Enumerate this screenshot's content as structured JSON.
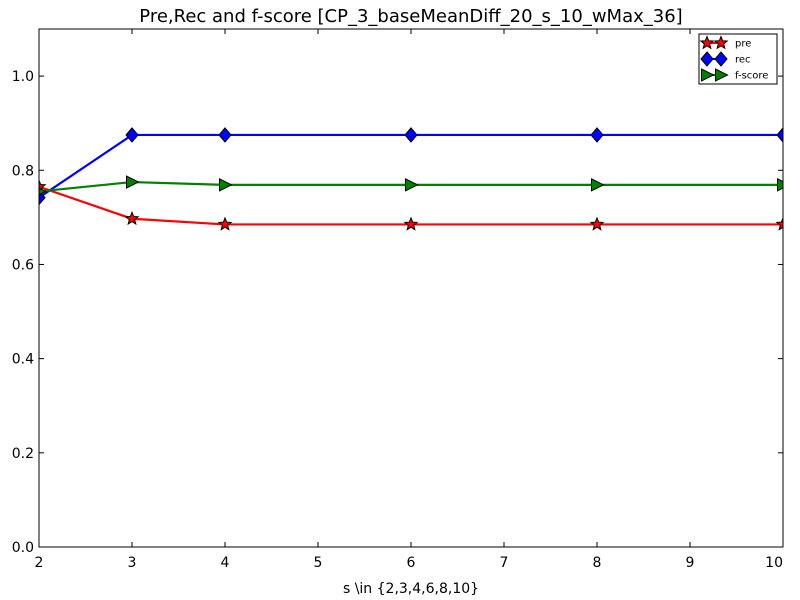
{
  "chart_data": {
    "type": "line",
    "title": "Pre,Rec and f-score [CP_3_baseMeanDiff_20_s_10_wMax_36]",
    "xlabel": "s \\in {2,3,4,6,8,10}",
    "ylabel": "",
    "xlim": [
      2,
      10
    ],
    "ylim": [
      0,
      1.1
    ],
    "x_ticks": [
      "2",
      "3",
      "4",
      "5",
      "6",
      "7",
      "8",
      "9",
      "10"
    ],
    "y_ticks": [
      "0.0",
      "0.2",
      "0.4",
      "0.6",
      "0.8",
      "1.0"
    ],
    "x": [
      2,
      3,
      4,
      6,
      8,
      10
    ],
    "grid": false,
    "legend_position": "top-right",
    "series": [
      {
        "name": "pre",
        "values": [
          0.765,
          0.697,
          0.685,
          0.685,
          0.685,
          0.685
        ],
        "color": "#ff0000",
        "marker": "star"
      },
      {
        "name": "rec",
        "values": [
          0.742,
          0.875,
          0.875,
          0.875,
          0.875,
          0.875
        ],
        "color": "#0000ff",
        "marker": "diamond"
      },
      {
        "name": "f-score",
        "values": [
          0.755,
          0.775,
          0.769,
          0.769,
          0.769,
          0.769
        ],
        "color": "#008000",
        "marker": "triangle-right"
      }
    ]
  }
}
